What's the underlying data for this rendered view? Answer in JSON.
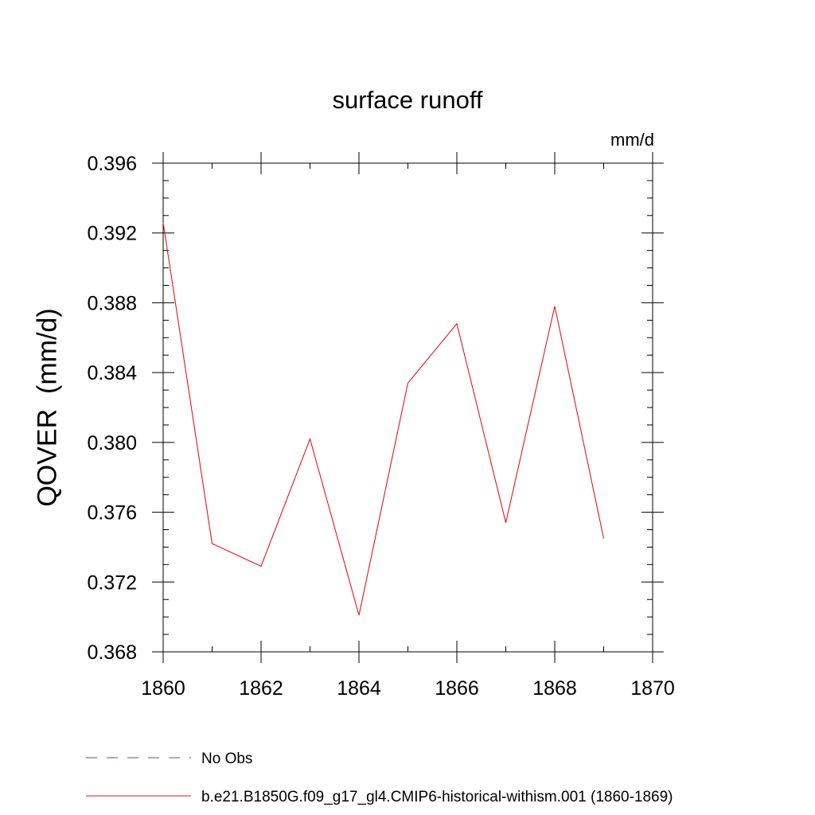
{
  "chart_data": {
    "type": "line",
    "title": "surface runoff",
    "units_label": "mm/d",
    "ylabel": "QOVER  (mm/d)",
    "xlabel": "",
    "xlim": [
      1860,
      1870
    ],
    "ylim": [
      0.368,
      0.396
    ],
    "xticks": [
      1860,
      1862,
      1864,
      1866,
      1868,
      1870
    ],
    "xtick_labels": [
      "1860",
      "1862",
      "1864",
      "1866",
      "1868",
      "1870"
    ],
    "yticks": [
      0.368,
      0.372,
      0.376,
      0.38,
      0.384,
      0.388,
      0.392,
      0.396
    ],
    "ytick_labels": [
      "0.368",
      "0.372",
      "0.376",
      "0.380",
      "0.384",
      "0.388",
      "0.392",
      "0.396"
    ],
    "grid": false,
    "legend_position": "bottom",
    "series": [
      {
        "name": "b.e21.B1850G.f09_g17_gl4.CMIP6-historical-withism.001 (1860-1869)",
        "color": "#e8141c",
        "style": "solid",
        "x": [
          1860,
          1861,
          1862,
          1863,
          1864,
          1865,
          1866,
          1867,
          1868,
          1869
        ],
        "y": [
          0.3926,
          0.3742,
          0.3729,
          0.3802,
          0.3701,
          0.3834,
          0.3868,
          0.3754,
          0.3878,
          0.3745
        ]
      }
    ],
    "legend": [
      {
        "label": "No Obs",
        "color": "#5a4fa0",
        "style": "dashed"
      },
      {
        "label": "b.e21.B1850G.f09_g17_gl4.CMIP6-historical-withism.001 (1860-1869)",
        "color": "#e8141c",
        "style": "solid"
      }
    ]
  }
}
